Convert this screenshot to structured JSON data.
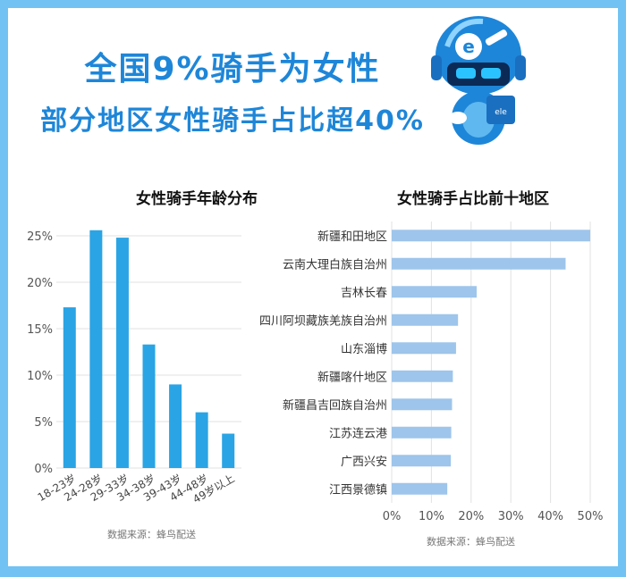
{
  "headline": {
    "line1": "全国9%骑手为女性",
    "line2": "部分地区女性骑手占比超40%"
  },
  "colors": {
    "frame": "#73c2f4",
    "headline": "#1e86d8",
    "bar_left": "#2aa4e4",
    "bar_right": "#9ec5eb"
  },
  "mascot": {
    "icon": "robot-mascot-icon",
    "letter": "e",
    "badge": "ele"
  },
  "chart_data": [
    {
      "type": "bar",
      "title": "女性骑手年龄分布",
      "categories": [
        "18-23岁",
        "24-28岁",
        "29-33岁",
        "34-38岁",
        "39-43岁",
        "44-48岁",
        "49岁以上"
      ],
      "values": [
        17.3,
        25.6,
        24.8,
        13.3,
        9.0,
        6.0,
        3.7
      ],
      "ylim": [
        0,
        25
      ],
      "yticks": [
        "0%",
        "5%",
        "10%",
        "15%",
        "20%",
        "25%"
      ],
      "grid": true,
      "source": "数据来源：蜂鸟配送"
    },
    {
      "type": "bar",
      "orientation": "horizontal",
      "title": "女性骑手占比前十地区",
      "categories": [
        "新疆和田地区",
        "云南大理白族自治州",
        "吉林长春",
        "四川阿坝藏族羌族自治州",
        "山东淄博",
        "新疆喀什地区",
        "新疆昌吉回族自治州",
        "江苏连云港",
        "广西兴安",
        "江西景德镇"
      ],
      "values": [
        50.0,
        43.8,
        21.4,
        16.7,
        16.2,
        15.4,
        15.2,
        15.0,
        14.9,
        14.0
      ],
      "xlim": [
        0,
        50
      ],
      "xticks": [
        "0%",
        "10%",
        "20%",
        "30%",
        "40%",
        "50%"
      ],
      "grid": true,
      "source": "数据来源：蜂鸟配送"
    }
  ]
}
